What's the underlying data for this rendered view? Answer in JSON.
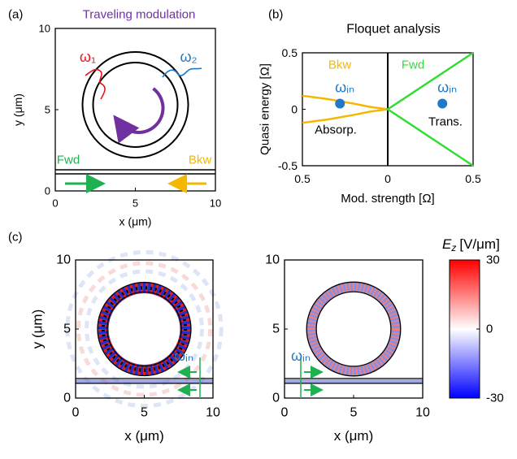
{
  "chart_data": [
    {
      "type": "schematic",
      "panel": "(a)",
      "title": "Traveling modulation",
      "title_color": "#7030a0",
      "xlabel": "x (μm)",
      "ylabel": "y (μm)",
      "xlim": [
        0,
        10
      ],
      "ylim": [
        0,
        10
      ],
      "xticks": [
        0,
        5,
        10
      ],
      "yticks": [
        0,
        5,
        10
      ],
      "annotations": [
        "ω₁",
        "ω₂",
        "Fwd",
        "Bkw"
      ],
      "annotation_colors": [
        "#e8141c",
        "#1f78c8",
        "#1fb050",
        "#f5b800"
      ]
    },
    {
      "type": "line",
      "panel": "(b)",
      "title": "Floquet analysis",
      "xlabel": "Mod. strength [Ω]",
      "ylabel": "Quasi energy [Ω]",
      "xlim": [
        -0.5,
        0.5
      ],
      "ylim": [
        -0.5,
        0.5
      ],
      "xticks": [
        {
          "value": -0.5,
          "label": "0.5"
        },
        0,
        0.5
      ],
      "yticks": [
        0.5,
        0,
        -0.5
      ],
      "series": [
        {
          "name": "Bkw",
          "color": "#f5b800",
          "x": [
            -0.5,
            -0.35,
            -0.2,
            -0.1,
            0,
            -0.1,
            -0.2,
            -0.35,
            -0.5
          ],
          "values": [
            0.12,
            0.09,
            0.05,
            0.02,
            0,
            -0.02,
            -0.05,
            -0.09,
            -0.12
          ]
        },
        {
          "name": "Fwd",
          "color": "#33dd33",
          "x": [
            0.5,
            0,
            0.5
          ],
          "values": [
            0.5,
            0,
            -0.5
          ]
        }
      ],
      "points": {
        "name": "ωᵢₙ",
        "color": "#1f78c8",
        "x": [
          -0.28,
          0.32
        ],
        "values": [
          0.05,
          0.05
        ]
      },
      "annotations": [
        "Absorp.",
        "Trans."
      ]
    },
    {
      "type": "heatmap",
      "panel": "(c)",
      "subplots": [
        {
          "xlim": [
            0,
            10
          ],
          "ylim": [
            0,
            10
          ],
          "xticks": [
            0,
            5,
            10
          ],
          "yticks": [
            0,
            5,
            10
          ],
          "xlabel": "x (μm)",
          "ylabel": "y (μm)",
          "annotation": "ωᵢₙ"
        },
        {
          "xlim": [
            0,
            10
          ],
          "ylim": [
            0,
            10
          ],
          "xticks": [
            0,
            5,
            10
          ],
          "yticks": [
            0,
            5,
            10
          ],
          "xlabel": "x (μm)",
          "annotation": "ωᵢₙ"
        }
      ],
      "colorbar": {
        "symbol": "E",
        "subscript": "z",
        "unit": "[V/μm]",
        "clim": [
          -30,
          30
        ],
        "ticks": [
          30,
          0,
          -30
        ]
      }
    }
  ]
}
